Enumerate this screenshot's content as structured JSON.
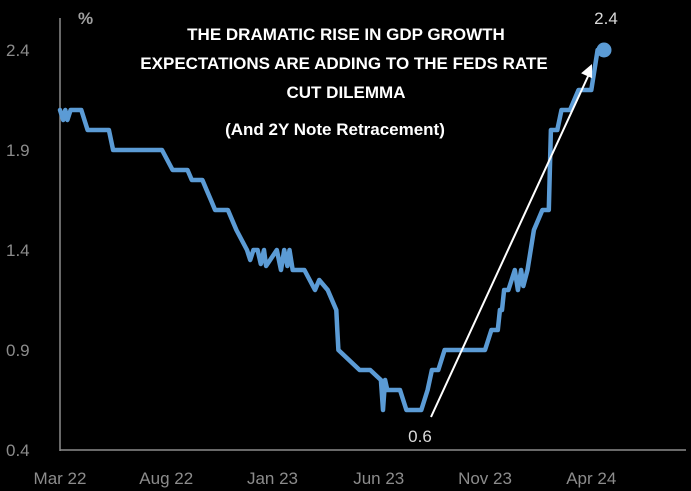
{
  "chart_data": {
    "type": "line",
    "title_lines": [
      "THE DRAMATIC RISE IN GDP GROWTH",
      "EXPECTATIONS ARE ADDING TO THE  FEDS RATE",
      "CUT DILEMMA"
    ],
    "subtitle": "(And 2Y Note Retracement)",
    "y_unit": "%",
    "ylim": [
      0.4,
      2.5
    ],
    "y_ticks": [
      "2.4",
      "1.9",
      "1.4",
      "0.9",
      "0.4"
    ],
    "x_ticks": [
      "Mar 22",
      "Aug 22",
      "Jan 23",
      "Jun 23",
      "Nov 23",
      "Apr 24"
    ],
    "grid": false,
    "colors": {
      "line": "#5b9bd5",
      "background": "#000000",
      "axis": "#8c8c8c",
      "arrow": "#ffffff"
    },
    "annotations": [
      {
        "label": "0.6",
        "value": 0.6,
        "month": 17.6
      },
      {
        "label": "2.4",
        "value": 2.4,
        "month": 25.6
      }
    ],
    "series": [
      {
        "x_month": [
          0.0,
          0.15,
          0.25,
          0.35,
          0.5,
          1.0,
          1.3,
          2.3,
          2.5,
          3.1,
          3.3,
          4.8,
          5.3,
          6.0,
          6.2,
          6.7,
          6.9,
          7.1,
          7.3,
          7.9,
          8.3,
          8.8,
          8.95,
          9.1,
          9.3,
          9.45,
          9.6,
          9.7,
          10.2,
          10.4,
          10.55,
          10.7,
          10.8,
          10.95,
          11.1,
          11.5,
          12.0,
          12.2,
          12.6,
          13.0,
          13.05,
          13.1,
          14.1,
          14.6,
          15.1,
          15.2,
          15.3,
          15.4,
          16.0,
          16.3,
          17.0,
          17.3,
          17.5,
          17.6,
          17.8,
          18.1,
          19.0,
          19.3,
          19.6,
          20.0,
          20.3,
          20.6,
          20.7,
          20.8,
          20.9,
          21.1,
          21.4,
          21.55,
          21.7,
          21.8,
          22.0,
          22.3,
          22.7,
          23.0,
          23.1,
          23.4,
          23.6,
          24.0,
          24.4,
          24.8,
          25.0,
          25.3,
          25.6
        ],
        "values": [
          2.1,
          2.05,
          2.1,
          2.05,
          2.1,
          2.1,
          2.0,
          2.0,
          1.9,
          1.9,
          1.9,
          1.9,
          1.8,
          1.8,
          1.75,
          1.75,
          1.7,
          1.65,
          1.6,
          1.6,
          1.5,
          1.4,
          1.35,
          1.4,
          1.4,
          1.33,
          1.4,
          1.32,
          1.4,
          1.3,
          1.4,
          1.32,
          1.4,
          1.3,
          1.3,
          1.3,
          1.2,
          1.25,
          1.2,
          1.1,
          1.0,
          0.9,
          0.8,
          0.8,
          0.75,
          0.6,
          0.75,
          0.7,
          0.7,
          0.6,
          0.6,
          0.7,
          0.8,
          0.8,
          0.8,
          0.9,
          0.9,
          0.9,
          0.9,
          0.9,
          1.0,
          1.0,
          1.1,
          1.1,
          1.2,
          1.2,
          1.3,
          1.2,
          1.3,
          1.22,
          1.3,
          1.5,
          1.6,
          1.6,
          2.0,
          2.0,
          2.1,
          2.1,
          2.2,
          2.2,
          2.2,
          2.4,
          2.4
        ]
      }
    ]
  }
}
